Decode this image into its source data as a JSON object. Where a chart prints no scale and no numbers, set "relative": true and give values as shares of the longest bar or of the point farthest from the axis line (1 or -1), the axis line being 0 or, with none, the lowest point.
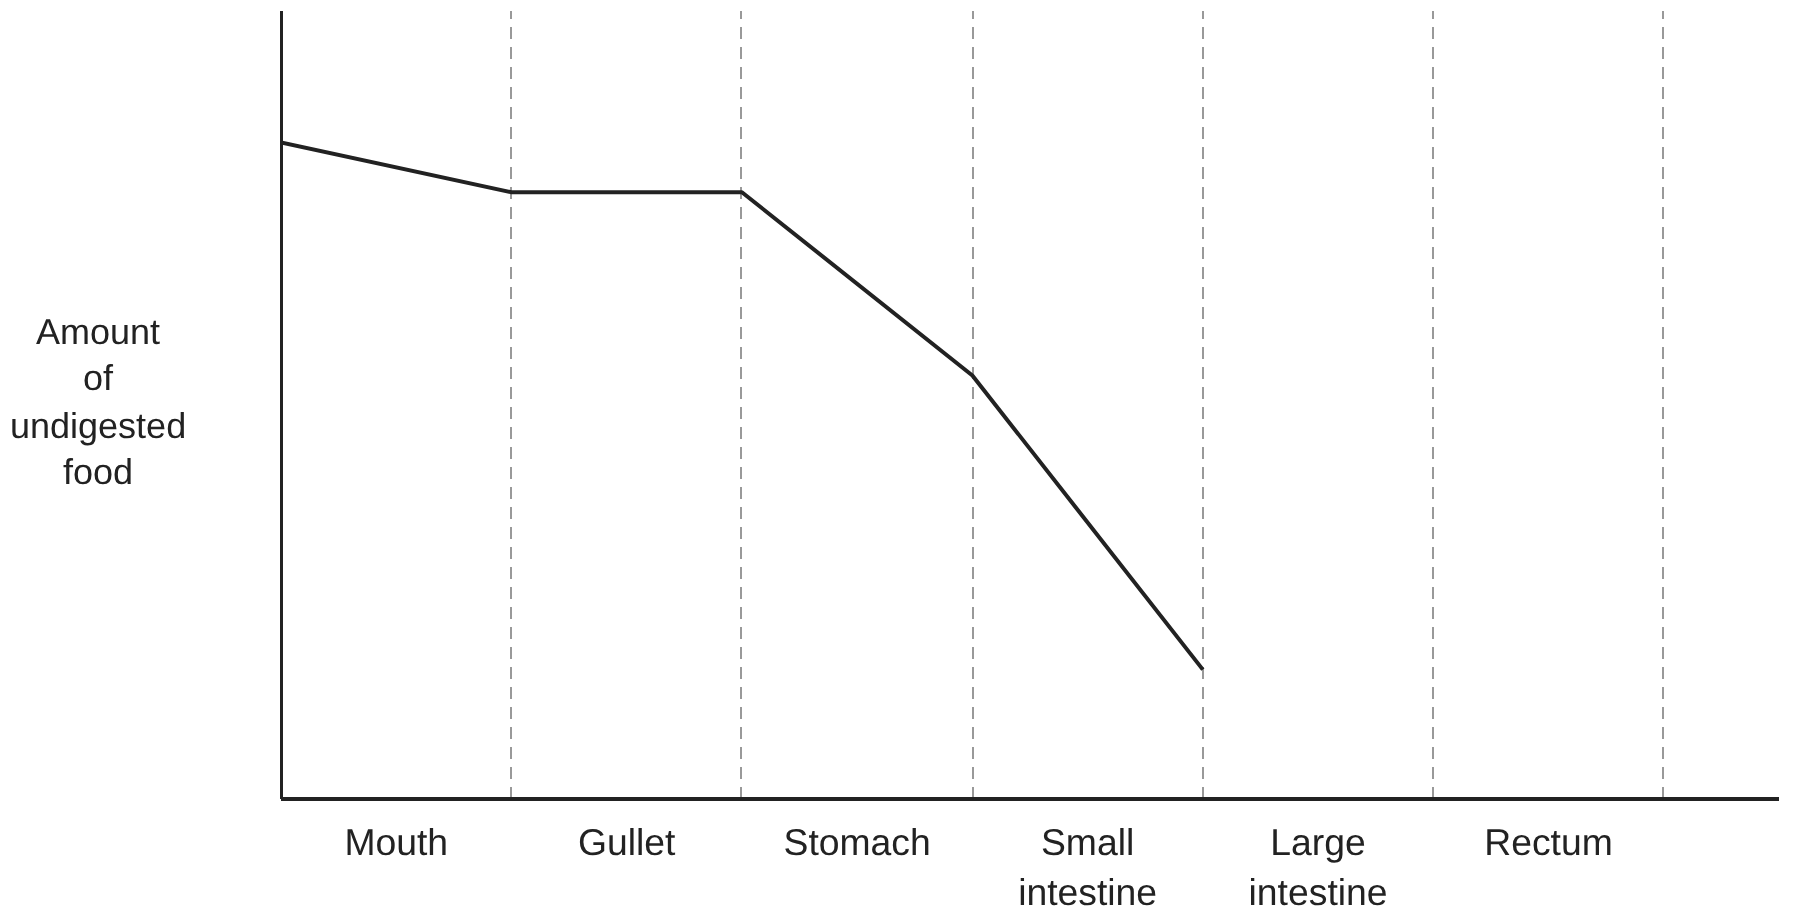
{
  "chart_data": {
    "type": "line",
    "relative": true,
    "ylabel": "Amount of undigested food",
    "categories": [
      null,
      null,
      null,
      null,
      null,
      null,
      null
    ],
    "series": [
      {
        "values": [
          1,
          0.924,
          0.924,
          0.645,
          0.197,
          null,
          null
        ],
        "color": "#222222"
      }
    ],
    "annotations": [
      "Mouth",
      "Gullet",
      "Stomach",
      "Small intestine",
      "Large intestine",
      "Rectum"
    ],
    "marker": "none",
    "line_style": "solid",
    "grid": "x"
  }
}
